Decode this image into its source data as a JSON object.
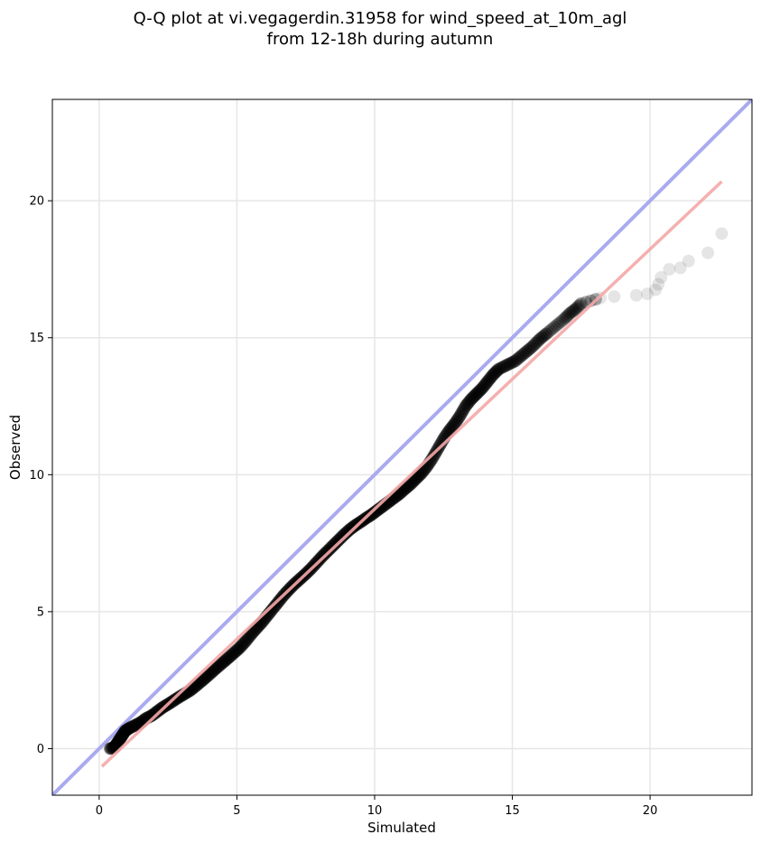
{
  "chart_data": {
    "type": "scatter",
    "title": [
      "Q-Q plot at vi.vegagerdin.31958 for wind_speed_at_10m_agl",
      "from 12-18h during autumn"
    ],
    "xlabel": "Simulated",
    "ylabel": "Observed",
    "xlim": [
      -1.7,
      23.7
    ],
    "ylim": [
      -1.7,
      23.7
    ],
    "xticks": [
      0,
      5,
      10,
      15,
      20
    ],
    "yticks": [
      0,
      5,
      10,
      15,
      20
    ],
    "grid": true,
    "point_color": "#000000",
    "identity_line": {
      "color": "#aaaaf0",
      "from": [
        -1.7,
        -1.7
      ],
      "to": [
        23.7,
        23.7
      ]
    },
    "fit_line": {
      "color": "#f5a8a8",
      "from": [
        0.1,
        -0.65
      ],
      "to": [
        22.6,
        20.7
      ]
    },
    "points": [
      [
        0.4,
        0.0
      ],
      [
        0.55,
        0.05
      ],
      [
        0.65,
        0.2
      ],
      [
        0.75,
        0.35
      ],
      [
        0.85,
        0.5
      ],
      [
        0.95,
        0.65
      ],
      [
        1.1,
        0.75
      ],
      [
        1.3,
        0.85
      ],
      [
        1.5,
        0.95
      ],
      [
        1.7,
        1.1
      ],
      [
        1.9,
        1.2
      ],
      [
        2.1,
        1.35
      ],
      [
        2.3,
        1.5
      ],
      [
        2.5,
        1.62
      ],
      [
        2.7,
        1.75
      ],
      [
        2.9,
        1.88
      ],
      [
        3.1,
        2.0
      ],
      [
        3.3,
        2.12
      ],
      [
        3.5,
        2.28
      ],
      [
        3.7,
        2.45
      ],
      [
        3.9,
        2.62
      ],
      [
        4.1,
        2.8
      ],
      [
        4.3,
        2.98
      ],
      [
        4.5,
        3.15
      ],
      [
        4.7,
        3.32
      ],
      [
        4.9,
        3.5
      ],
      [
        5.1,
        3.68
      ],
      [
        5.3,
        3.9
      ],
      [
        5.5,
        4.15
      ],
      [
        5.7,
        4.38
      ],
      [
        5.9,
        4.6
      ],
      [
        6.1,
        4.85
      ],
      [
        6.3,
        5.1
      ],
      [
        6.5,
        5.35
      ],
      [
        6.7,
        5.6
      ],
      [
        6.9,
        5.82
      ],
      [
        7.1,
        6.02
      ],
      [
        7.3,
        6.2
      ],
      [
        7.5,
        6.38
      ],
      [
        7.7,
        6.58
      ],
      [
        7.9,
        6.8
      ],
      [
        8.1,
        7.02
      ],
      [
        8.3,
        7.22
      ],
      [
        8.5,
        7.42
      ],
      [
        8.7,
        7.62
      ],
      [
        8.9,
        7.82
      ],
      [
        9.1,
        8.0
      ],
      [
        9.3,
        8.15
      ],
      [
        9.5,
        8.28
      ],
      [
        9.7,
        8.42
      ],
      [
        9.9,
        8.55
      ],
      [
        10.1,
        8.7
      ],
      [
        10.3,
        8.85
      ],
      [
        10.5,
        9.0
      ],
      [
        10.7,
        9.15
      ],
      [
        10.9,
        9.3
      ],
      [
        11.1,
        9.48
      ],
      [
        11.3,
        9.65
      ],
      [
        11.5,
        9.85
      ],
      [
        11.7,
        10.05
      ],
      [
        11.9,
        10.3
      ],
      [
        12.1,
        10.6
      ],
      [
        12.3,
        10.95
      ],
      [
        12.5,
        11.3
      ],
      [
        12.7,
        11.6
      ],
      [
        12.9,
        11.85
      ],
      [
        13.1,
        12.15
      ],
      [
        13.3,
        12.5
      ],
      [
        13.5,
        12.75
      ],
      [
        13.7,
        12.95
      ],
      [
        13.9,
        13.15
      ],
      [
        14.1,
        13.4
      ],
      [
        14.3,
        13.65
      ],
      [
        14.5,
        13.85
      ],
      [
        14.8,
        14.0
      ],
      [
        15.1,
        14.15
      ],
      [
        15.4,
        14.4
      ],
      [
        15.7,
        14.65
      ],
      [
        16.0,
        14.95
      ],
      [
        16.3,
        15.2
      ],
      [
        16.6,
        15.45
      ],
      [
        16.9,
        15.7
      ],
      [
        17.1,
        15.9
      ],
      [
        17.3,
        16.05
      ],
      [
        17.5,
        16.25
      ],
      [
        18.2,
        16.45
      ],
      [
        18.7,
        16.5
      ],
      [
        19.5,
        16.55
      ],
      [
        19.9,
        16.6
      ],
      [
        20.2,
        16.75
      ],
      [
        20.3,
        16.95
      ],
      [
        20.4,
        17.2
      ],
      [
        20.7,
        17.5
      ],
      [
        21.1,
        17.55
      ],
      [
        21.4,
        17.8
      ],
      [
        22.1,
        18.1
      ],
      [
        22.6,
        18.8
      ]
    ]
  }
}
